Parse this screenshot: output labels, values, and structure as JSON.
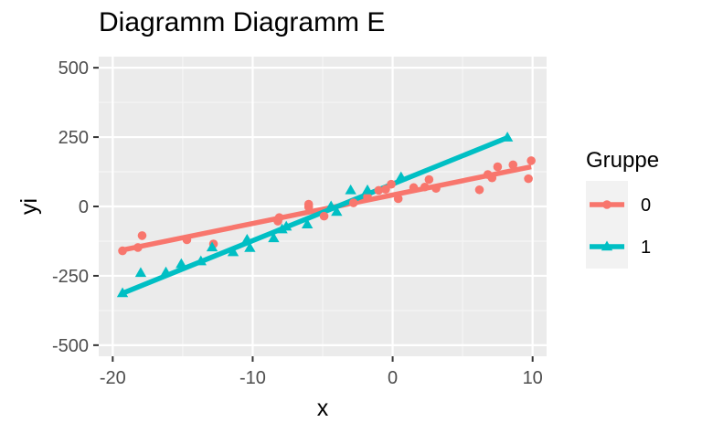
{
  "chart_data": {
    "type": "scatter",
    "title": "Diagramm Diagramm E",
    "xlabel": "x",
    "ylabel": "yi",
    "xlim": [
      -21,
      11
    ],
    "ylim": [
      -540,
      540
    ],
    "x_ticks": [
      -20,
      -10,
      0,
      10
    ],
    "x_tick_labels": [
      "-20",
      "-10",
      "0",
      "10"
    ],
    "y_ticks": [
      -500,
      -250,
      0,
      250,
      500
    ],
    "y_tick_labels": [
      "-500",
      "-250",
      "0",
      "250",
      "500"
    ],
    "grid": true,
    "legend": {
      "title": "Gruppe",
      "position": "right"
    },
    "series": [
      {
        "name": "0",
        "color": "#F8766D",
        "marker": "circle",
        "fit": {
          "x": [
            -19.3,
            9.9
          ],
          "y": [
            -157,
            143
          ]
        },
        "points": [
          [
            -19.3,
            -160
          ],
          [
            -18.2,
            -148
          ],
          [
            -17.9,
            -105
          ],
          [
            -14.7,
            -120
          ],
          [
            -12.8,
            -135
          ],
          [
            -8.2,
            -53
          ],
          [
            -8.1,
            -40
          ],
          [
            -6.0,
            8
          ],
          [
            -6.0,
            -2
          ],
          [
            -4.9,
            -35
          ],
          [
            -2.8,
            13
          ],
          [
            -1.8,
            35
          ],
          [
            -1.0,
            58
          ],
          [
            -0.5,
            62
          ],
          [
            -0.1,
            80
          ],
          [
            0.4,
            28
          ],
          [
            1.5,
            68
          ],
          [
            2.3,
            70
          ],
          [
            2.6,
            97
          ],
          [
            3.1,
            65
          ],
          [
            6.2,
            60
          ],
          [
            6.8,
            115
          ],
          [
            7.1,
            103
          ],
          [
            7.5,
            143
          ],
          [
            8.6,
            150
          ],
          [
            9.7,
            100
          ],
          [
            9.9,
            165
          ]
        ]
      },
      {
        "name": "1",
        "color": "#00BFC4",
        "marker": "triangle",
        "fit": {
          "x": [
            -19.3,
            8.2
          ],
          "y": [
            -313,
            248
          ]
        },
        "points": [
          [
            -19.3,
            -313
          ],
          [
            -18.0,
            -240
          ],
          [
            -16.2,
            -238
          ],
          [
            -15.1,
            -208
          ],
          [
            -13.7,
            -198
          ],
          [
            -12.9,
            -148
          ],
          [
            -11.4,
            -165
          ],
          [
            -10.4,
            -120
          ],
          [
            -10.2,
            -150
          ],
          [
            -8.5,
            -115
          ],
          [
            -7.9,
            -83
          ],
          [
            -7.6,
            -73
          ],
          [
            -6.1,
            -65
          ],
          [
            -4.4,
            0
          ],
          [
            -4.0,
            -20
          ],
          [
            -3.0,
            58
          ],
          [
            -1.8,
            58
          ],
          [
            0.6,
            105
          ],
          [
            8.2,
            248
          ]
        ]
      }
    ]
  }
}
